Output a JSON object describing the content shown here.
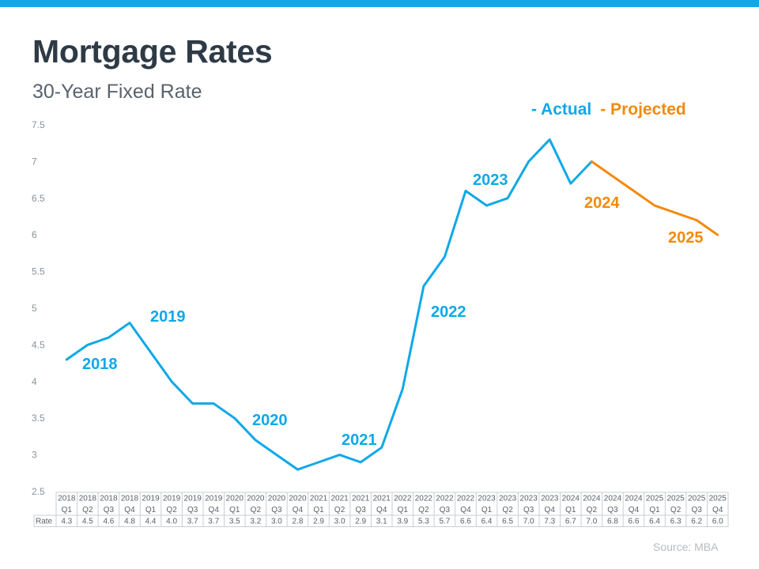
{
  "title": "Mortgage Rates",
  "subtitle": "30-Year Fixed Rate",
  "legend": {
    "actual": "- Actual",
    "projected": "- Projected"
  },
  "source": "Source: MBA",
  "colors": {
    "actual": "#0fa8e8",
    "projected": "#f28a0c",
    "title": "#2e3a46"
  },
  "chart_data": {
    "type": "line",
    "title": "Mortgage Rates",
    "subtitle": "30-Year Fixed Rate",
    "xlabel": "",
    "ylabel": "",
    "ylim": [
      2.5,
      7.5
    ],
    "yticks": [
      "7.5",
      "7",
      "6.5",
      "6",
      "5.5",
      "5",
      "4.5",
      "4",
      "3.5",
      "3",
      "2.5"
    ],
    "grid": false,
    "legend_position": "top-right",
    "table_row_label": "Rate",
    "years": [
      "2018",
      "2018",
      "2018",
      "2018",
      "2019",
      "2019",
      "2019",
      "2019",
      "2020",
      "2020",
      "2020",
      "2020",
      "2021",
      "2021",
      "2021",
      "2021",
      "2022",
      "2022",
      "2022",
      "2022",
      "2023",
      "2023",
      "2023",
      "2023",
      "2024",
      "2024",
      "2024",
      "2024",
      "2025",
      "2025",
      "2025",
      "2025"
    ],
    "quarters": [
      "Q1",
      "Q2",
      "Q3",
      "Q4",
      "Q1",
      "Q2",
      "Q3",
      "Q4",
      "Q1",
      "Q2",
      "Q3",
      "Q4",
      "Q1",
      "Q2",
      "Q3",
      "Q4",
      "Q1",
      "Q2",
      "Q3",
      "Q4",
      "Q1",
      "Q2",
      "Q3",
      "Q4",
      "Q1",
      "Q2",
      "Q3",
      "Q4",
      "Q1",
      "Q2",
      "Q3",
      "Q4"
    ],
    "rate_labels": [
      "4.3",
      "4.5",
      "4.6",
      "4.8",
      "4.4",
      "4.0",
      "3.7",
      "3.7",
      "3.5",
      "3.2",
      "3.0",
      "2.8",
      "2.9",
      "3.0",
      "2.9",
      "3.1",
      "3.9",
      "5.3",
      "5.7",
      "6.6",
      "6.4",
      "6.5",
      "7.0",
      "7.3",
      "6.7",
      "7.0",
      "6.8",
      "6.6",
      "6.4",
      "6.3",
      "6.2",
      "6.0"
    ],
    "plotted_values": [
      4.3,
      4.5,
      4.6,
      4.8,
      4.4,
      4.0,
      3.7,
      3.7,
      3.5,
      3.2,
      3.0,
      2.8,
      2.9,
      3.0,
      2.9,
      3.1,
      3.9,
      5.3,
      5.7,
      6.6,
      6.4,
      6.5,
      7.0,
      7.3,
      6.7,
      7.0,
      6.8,
      6.6,
      6.4,
      6.3,
      6.2,
      6.0
    ],
    "series": [
      {
        "name": "Actual",
        "start_index": 0,
        "end_index": 25
      },
      {
        "name": "Projected",
        "start_index": 25,
        "end_index": 31
      }
    ],
    "annotations": [
      {
        "text": "2018",
        "series": "Actual"
      },
      {
        "text": "2019",
        "series": "Actual"
      },
      {
        "text": "2020",
        "series": "Actual"
      },
      {
        "text": "2021",
        "series": "Actual"
      },
      {
        "text": "2022",
        "series": "Actual"
      },
      {
        "text": "2023",
        "series": "Actual"
      },
      {
        "text": "2024",
        "series": "Projected"
      },
      {
        "text": "2025",
        "series": "Projected"
      }
    ]
  }
}
